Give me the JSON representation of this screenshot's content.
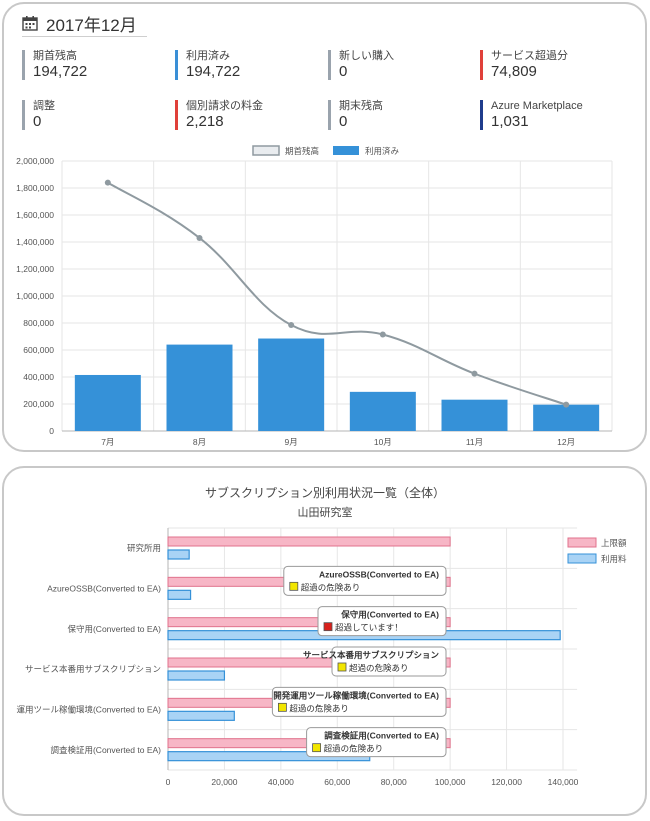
{
  "summary": {
    "month_title": "2017年12月",
    "items": [
      {
        "label": "期首残高",
        "value": "194,722",
        "color": "#9aa3ad"
      },
      {
        "label": "利用済み",
        "value": "194,722",
        "color": "#3a8fd6"
      },
      {
        "label": "新しい購入",
        "value": "0",
        "color": "#9aa3ad"
      },
      {
        "label": "サービス超過分",
        "value": "74,809",
        "color": "#e0403a"
      },
      {
        "label": "調整",
        "value": "0",
        "color": "#9aa3ad"
      },
      {
        "label": "個別請求の料金",
        "value": "2,218",
        "color": "#e0403a"
      },
      {
        "label": "期末残高",
        "value": "0",
        "color": "#9aa3ad"
      },
      {
        "label": "Azure Marketplace",
        "value": "1,031",
        "color": "#1f3c8c"
      }
    ]
  },
  "colors": {
    "bar_used": "#3591d8",
    "line_balance": "#8f9aa0",
    "limit_fill": "#f7b6c6",
    "limit_stroke": "#e0728c",
    "usage_fill": "#a9d3f5",
    "usage_stroke": "#3591d8",
    "grid": "#e6e6e6"
  },
  "chart_data": [
    {
      "type": "bar",
      "title": "",
      "xlabel": "",
      "ylabel": "",
      "categories": [
        "7月",
        "8月",
        "9月",
        "10月",
        "11月",
        "12月"
      ],
      "ylim": [
        0,
        2000000
      ],
      "yticks": [
        0,
        200000,
        400000,
        600000,
        800000,
        1000000,
        1200000,
        1400000,
        1600000,
        1800000,
        2000000
      ],
      "ytick_labels": [
        "0",
        "200,000",
        "400,000",
        "600,000",
        "800,000",
        "1,000,000",
        "1,200,000",
        "1,400,000",
        "1,600,000",
        "1,800,000",
        "2,000,000"
      ],
      "legend_position": "top",
      "grid": true,
      "series": [
        {
          "name": "期首残高",
          "kind": "line",
          "values": [
            1840000,
            1430000,
            785000,
            715000,
            425000,
            195000
          ]
        },
        {
          "name": "利用済み",
          "kind": "bar",
          "values": [
            415000,
            640000,
            685000,
            290000,
            232000,
            195000
          ]
        }
      ]
    },
    {
      "type": "bar",
      "orientation": "horizontal",
      "title": "サブスクリプション別利用状況一覧（全体）",
      "subtitle": "山田研究室",
      "xlabel": "",
      "ylabel": "",
      "categories": [
        "研究所用",
        "AzureOSSB(Converted to EA)",
        "保守用(Converted to EA)",
        "サービス本番用サブスクリプション",
        "運用ツール稼働環境(Converted to EA)",
        "調査検証用(Converted to EA)"
      ],
      "xlim": [
        0,
        145000
      ],
      "xticks": [
        0,
        20000,
        40000,
        60000,
        80000,
        100000,
        120000,
        140000
      ],
      "xtick_labels": [
        "0",
        "20,000",
        "40,000",
        "60,000",
        "80,000",
        "100,000",
        "120,000",
        "140,000"
      ],
      "legend_position": "top-right",
      "grid": true,
      "series": [
        {
          "name": "上限額",
          "values": [
            100000,
            100000,
            100000,
            100000,
            100000,
            100000
          ]
        },
        {
          "name": "利用料",
          "values": [
            7500,
            8000,
            139000,
            20000,
            23500,
            71500
          ]
        }
      ],
      "annotations": [
        {
          "category": "AzureOSSB(Converted to EA)",
          "title": "AzureOSSB(Converted to EA)",
          "status": "超過の危険あり",
          "status_color": "#f2e600"
        },
        {
          "category": "保守用(Converted to EA)",
          "title": "保守用(Converted to EA)",
          "status": "超過しています！",
          "status_color": "#d8211c"
        },
        {
          "category": "サービス本番用サブスクリプション",
          "title": "サービス本番用サブスクリプション",
          "status": "超過の危険あり",
          "status_color": "#f2e600"
        },
        {
          "category": "運用ツール稼働環境(Converted to EA)",
          "title": "開発運用ツール稼働環境(Converted to EA)",
          "status": "超過の危険あり",
          "status_color": "#f2e600"
        },
        {
          "category": "調査検証用(Converted to EA)",
          "title": "調査検証用(Converted to EA)",
          "status": "超過の危険あり",
          "status_color": "#f2e600"
        }
      ]
    }
  ]
}
